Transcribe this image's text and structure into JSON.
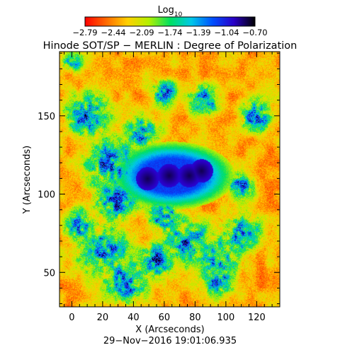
{
  "chart_data": {
    "type": "heatmap",
    "title": "Hinode SOT/SP − MERLIN : Degree of Polarization",
    "colorbar": {
      "label_main": "Log",
      "label_sub": "10",
      "ticks": [
        "−2.79",
        "−2.44",
        "−2.09",
        "−1.74",
        "−1.39",
        "−1.04",
        "−0.70"
      ],
      "min": -2.79,
      "max": -0.7,
      "colormap": [
        "#ff0000",
        "#ff6a00",
        "#ffd000",
        "#b4f000",
        "#00e060",
        "#00c8e8",
        "#0050ff",
        "#2a00c8",
        "#000000"
      ]
    },
    "xlabel": "X (Arcseconds)",
    "ylabel": "Y (Arcseconds)",
    "xlim": [
      -8,
      135
    ],
    "ylim": [
      28,
      191
    ],
    "x_ticks": [
      0,
      20,
      40,
      60,
      80,
      100,
      120
    ],
    "y_ticks": [
      50,
      100,
      150
    ],
    "features": {
      "umbrae": [
        {
          "x": 49,
          "y": 110
        },
        {
          "x": 63,
          "y": 112
        },
        {
          "x": 76,
          "y": 112
        },
        {
          "x": 84,
          "y": 115
        }
      ],
      "penumbra_center": {
        "x": 65,
        "y": 112
      }
    },
    "footer": "29−Nov−2016 19:01:06.935"
  }
}
